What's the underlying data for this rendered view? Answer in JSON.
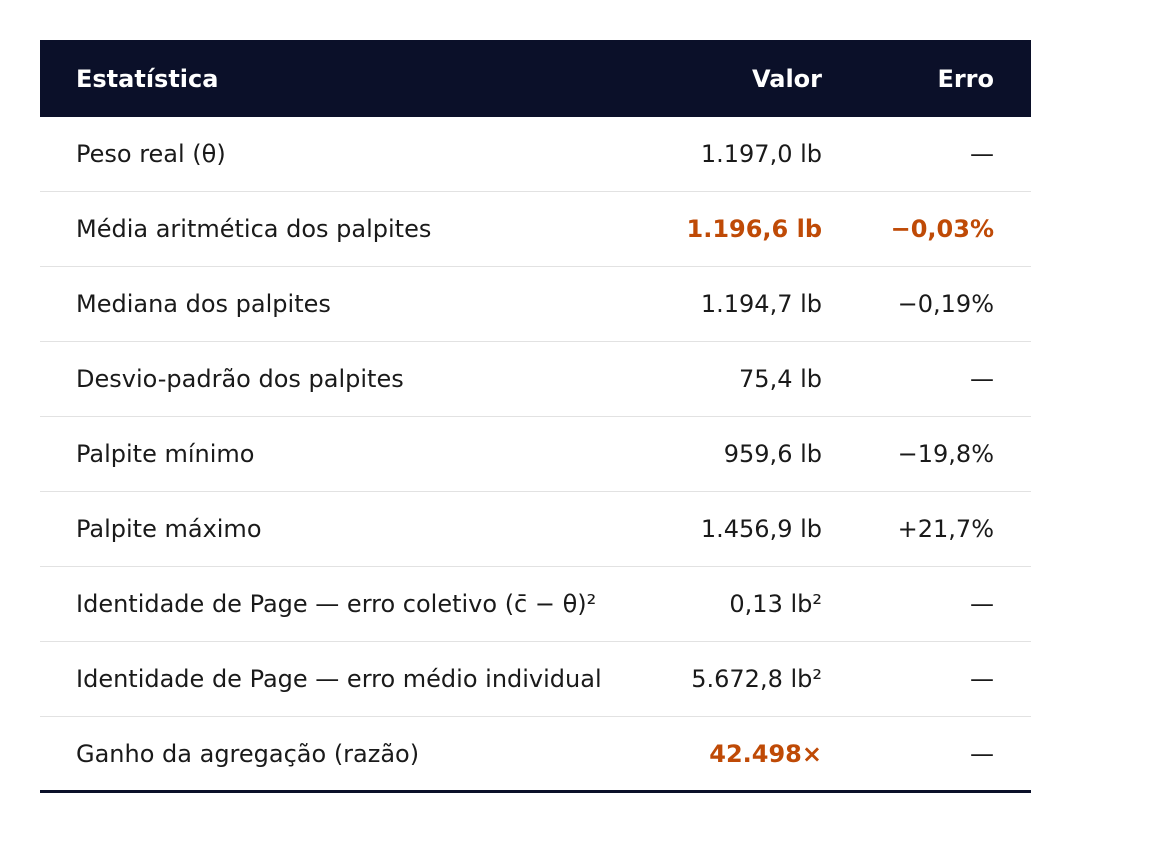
{
  "table": {
    "headers": {
      "statistic": "Estatística",
      "value": "Valor",
      "error": "Erro"
    },
    "rows": [
      {
        "label": "Peso real (θ)",
        "value": "1.197,0 lb",
        "error": "—"
      },
      {
        "label": "Média aritmética dos palpites",
        "value": "1.196,6 lb",
        "error": "−0,03%"
      },
      {
        "label": "Mediana dos palpites",
        "value": "1.194,7 lb",
        "error": "−0,19%"
      },
      {
        "label": "Desvio-padrão dos palpites",
        "value": "75,4 lb",
        "error": "—"
      },
      {
        "label": "Palpite mínimo",
        "value": "959,6 lb",
        "error": "−19,8%"
      },
      {
        "label": "Palpite máximo",
        "value": "1.456,9 lb",
        "error": "+21,7%"
      },
      {
        "label": "Identidade de Page — erro coletivo (c̄ − θ)²",
        "value": "0,13 lb²",
        "error": "—"
      },
      {
        "label": "Identidade de Page — erro médio individual",
        "value": "5.672,8 lb²",
        "error": "—"
      },
      {
        "label": "Ganho da agregação (razão)",
        "value": "42.498×",
        "error": "—"
      }
    ]
  },
  "colors": {
    "header_bg": "#0b1029",
    "highlight": "#bf4a06"
  }
}
